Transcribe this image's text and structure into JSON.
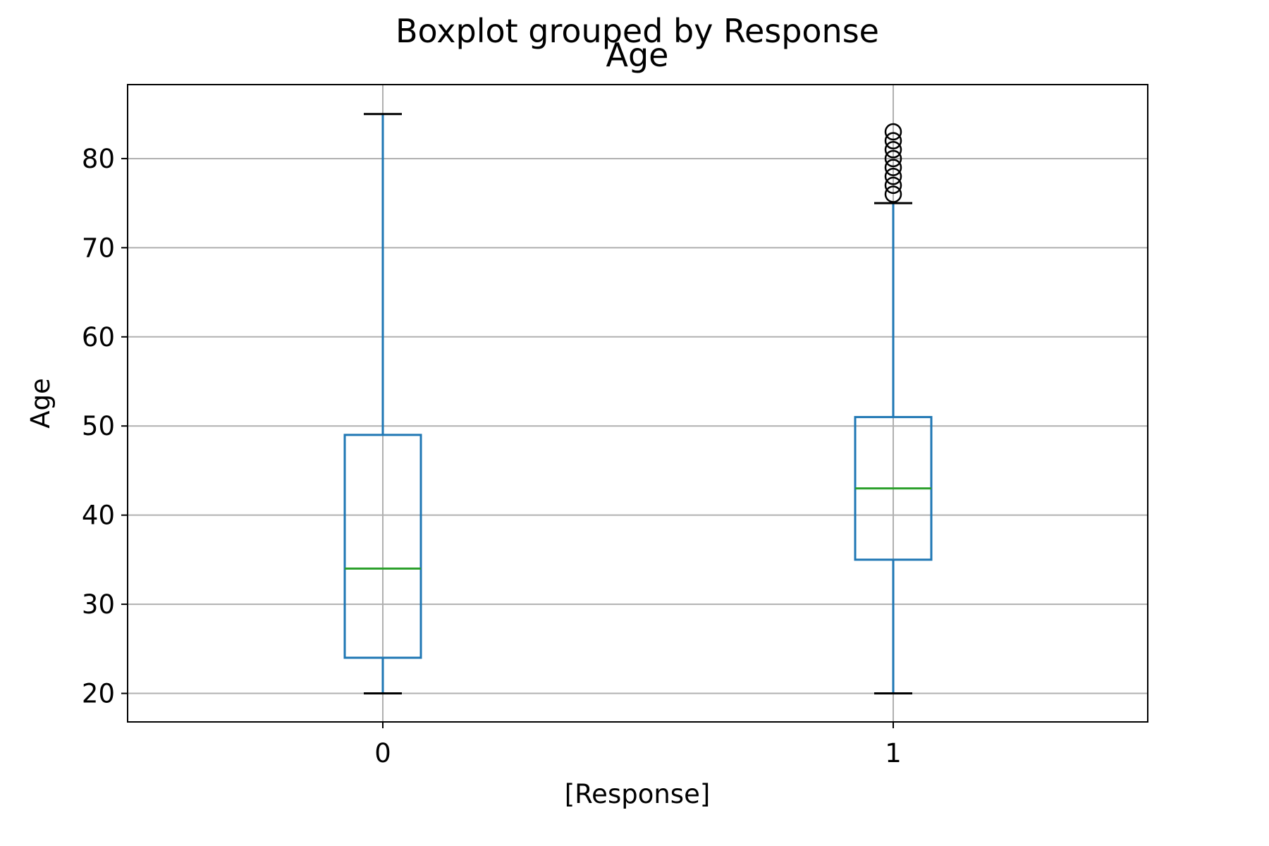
{
  "chart_data": {
    "type": "boxplot",
    "suptitle": "Boxplot grouped by Response",
    "title": "Age",
    "xlabel": "[Response]",
    "ylabel": "Age",
    "categories": [
      "0",
      "1"
    ],
    "ylim": [
      16.8,
      88.3
    ],
    "yticks": [
      "20",
      "30",
      "40",
      "50",
      "60",
      "70",
      "80"
    ],
    "grid": true,
    "colors": {
      "box": "#1f77b4",
      "median": "#2ca02c",
      "whisker_cap": "#000000",
      "flier": "#000000",
      "grid": "#b0b0b0"
    },
    "boxes": [
      {
        "category": "0",
        "whisker_low": 20,
        "q1": 24,
        "median": 34,
        "q3": 49,
        "whisker_high": 85,
        "fliers": []
      },
      {
        "category": "1",
        "whisker_low": 20,
        "q1": 35,
        "median": 43,
        "q3": 51,
        "whisker_high": 75,
        "fliers": [
          76,
          77,
          78,
          79,
          80,
          81,
          82,
          83
        ]
      }
    ]
  }
}
